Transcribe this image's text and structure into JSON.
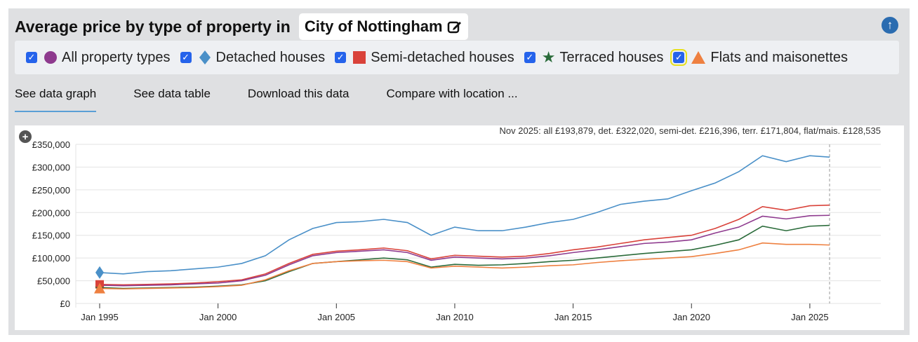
{
  "header": {
    "title": "Average price by type of property in",
    "location": "City of Nottingham",
    "edit_icon": "pencil-square-icon",
    "top_icon": "arrow-up-circle-icon"
  },
  "legend": [
    {
      "label": "All property types",
      "marker": "circle",
      "color": "#8e3a8e",
      "checked": true
    },
    {
      "label": "Detached houses",
      "marker": "diamond",
      "color": "#4a90c8",
      "checked": true
    },
    {
      "label": "Semi-detached houses",
      "marker": "square",
      "color": "#d9423a",
      "checked": true
    },
    {
      "label": "Terraced houses",
      "marker": "star",
      "color": "#2a6b3a",
      "checked": true
    },
    {
      "label": "Flats and maisonettes",
      "marker": "triangle",
      "color": "#ee8040",
      "checked": true
    }
  ],
  "tabs": [
    "See data graph",
    "See data table",
    "Download this data",
    "Compare with location ..."
  ],
  "chart_data": {
    "type": "line",
    "annotation": "Nov 2025: all £193,879, det. £322,020, semi-det. £216,396, terr. £171,804, flat/mais. £128,535",
    "x": [
      "1995-01",
      "1996-01",
      "1997-01",
      "1998-01",
      "1999-01",
      "2000-01",
      "2001-01",
      "2002-01",
      "2003-01",
      "2004-01",
      "2005-01",
      "2006-01",
      "2007-01",
      "2008-01",
      "2009-01",
      "2010-01",
      "2011-01",
      "2012-01",
      "2013-01",
      "2014-01",
      "2015-01",
      "2016-01",
      "2017-01",
      "2018-01",
      "2019-01",
      "2020-01",
      "2021-01",
      "2022-01",
      "2023-01",
      "2024-01",
      "2025-01",
      "2025-11"
    ],
    "xticks": [
      "Jan 1995",
      "Jan 2000",
      "Jan 2005",
      "Jan 2010",
      "Jan 2015",
      "Jan 2020",
      "Jan 2025"
    ],
    "yticks": [
      "£0",
      "£50,000",
      "£100,000",
      "£150,000",
      "£200,000",
      "£250,000",
      "£300,000",
      "£350,000"
    ],
    "ylim": [
      0,
      350000
    ],
    "grid": true,
    "series": [
      {
        "name": "Detached houses",
        "color": "#4a90c8",
        "values": [
          68000,
          65000,
          70000,
          72000,
          76000,
          80000,
          88000,
          105000,
          140000,
          165000,
          178000,
          180000,
          185000,
          178000,
          150000,
          168000,
          160000,
          160000,
          168000,
          178000,
          185000,
          200000,
          218000,
          225000,
          230000,
          248000,
          265000,
          290000,
          325000,
          312000,
          325000,
          322020
        ]
      },
      {
        "name": "Semi-detached houses",
        "color": "#d9423a",
        "values": [
          42000,
          41000,
          42000,
          43000,
          45000,
          48000,
          52000,
          65000,
          88000,
          108000,
          115000,
          118000,
          122000,
          116000,
          98000,
          106000,
          104000,
          102000,
          104000,
          110000,
          118000,
          124000,
          132000,
          140000,
          145000,
          150000,
          165000,
          185000,
          213000,
          205000,
          215000,
          216396
        ]
      },
      {
        "name": "All property types",
        "color": "#8e3a8e",
        "values": [
          40000,
          39000,
          40000,
          41000,
          43000,
          45000,
          50000,
          62000,
          85000,
          105000,
          112000,
          115000,
          118000,
          112000,
          95000,
          102000,
          100000,
          98000,
          100000,
          105000,
          112000,
          118000,
          125000,
          132000,
          135000,
          140000,
          155000,
          168000,
          192000,
          186000,
          193000,
          193879
        ]
      },
      {
        "name": "Terraced houses",
        "color": "#2a6b3a",
        "values": [
          35000,
          33000,
          34000,
          35000,
          36000,
          38000,
          41000,
          50000,
          70000,
          88000,
          92000,
          96000,
          100000,
          96000,
          80000,
          86000,
          84000,
          85000,
          88000,
          92000,
          95000,
          100000,
          105000,
          110000,
          114000,
          118000,
          128000,
          140000,
          170000,
          160000,
          170000,
          171804
        ]
      },
      {
        "name": "Flats and maisonettes",
        "color": "#ee8040",
        "values": [
          33000,
          32000,
          33000,
          34000,
          35000,
          37000,
          40000,
          52000,
          72000,
          88000,
          92000,
          94000,
          95000,
          92000,
          78000,
          82000,
          80000,
          78000,
          80000,
          83000,
          85000,
          90000,
          94000,
          97000,
          100000,
          103000,
          110000,
          118000,
          133000,
          130000,
          130000,
          128535
        ]
      }
    ]
  }
}
